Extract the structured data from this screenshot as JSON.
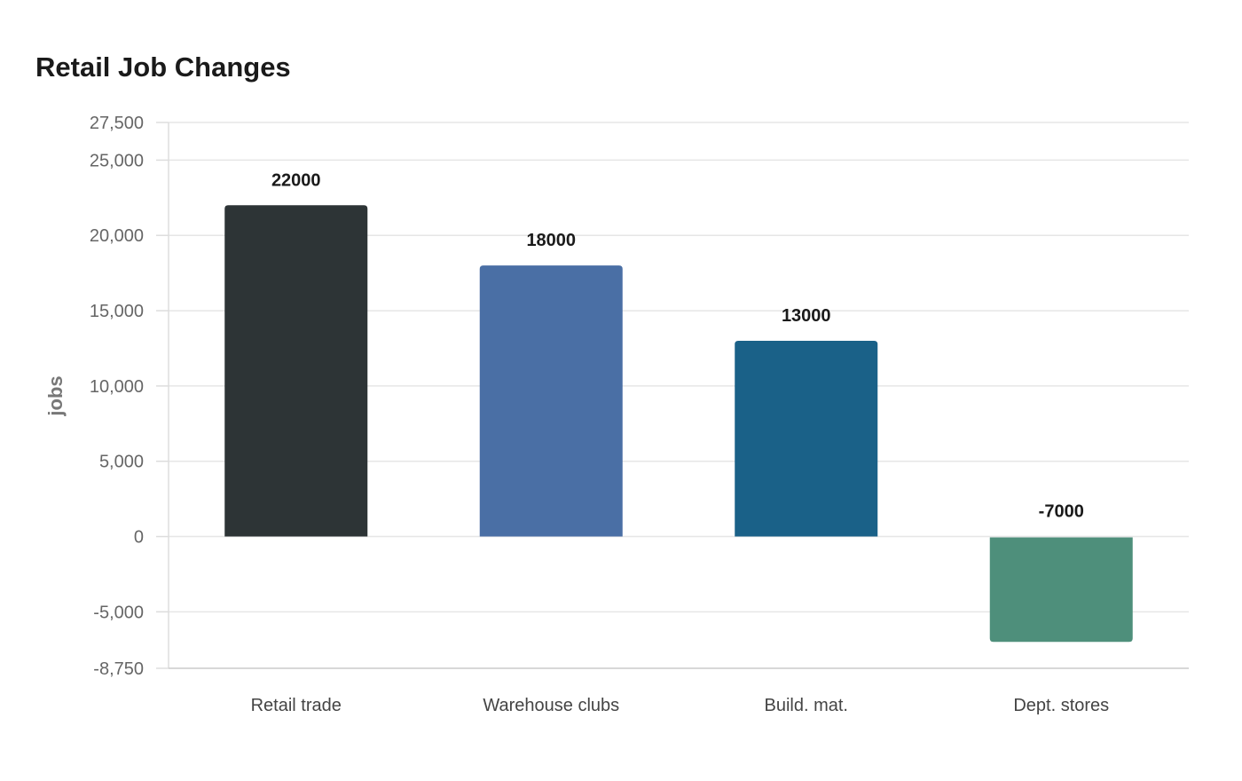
{
  "chart_data": {
    "type": "bar",
    "title": "Retail Job Changes",
    "ylabel": "jobs",
    "xlabel": "",
    "categories": [
      "Retail trade",
      "Warehouse clubs",
      "Build. mat.",
      "Dept. stores"
    ],
    "values": [
      22000,
      18000,
      13000,
      -7000
    ],
    "data_labels": [
      "22000",
      "18000",
      "13000",
      "-7000"
    ],
    "colors": [
      "#2d3436",
      "#4a6fa5",
      "#1a6188",
      "#4e8f7b"
    ],
    "ylim": [
      -8750,
      27500
    ],
    "yticks": [
      -8750,
      -5000,
      0,
      5000,
      10000,
      15000,
      20000,
      25000,
      27500
    ],
    "ytick_labels": [
      "-8,750",
      "-5,000",
      "0",
      "5,000",
      "10,000",
      "15,000",
      "20,000",
      "25,000",
      "27,500"
    ],
    "grid": true,
    "legend": "none"
  }
}
